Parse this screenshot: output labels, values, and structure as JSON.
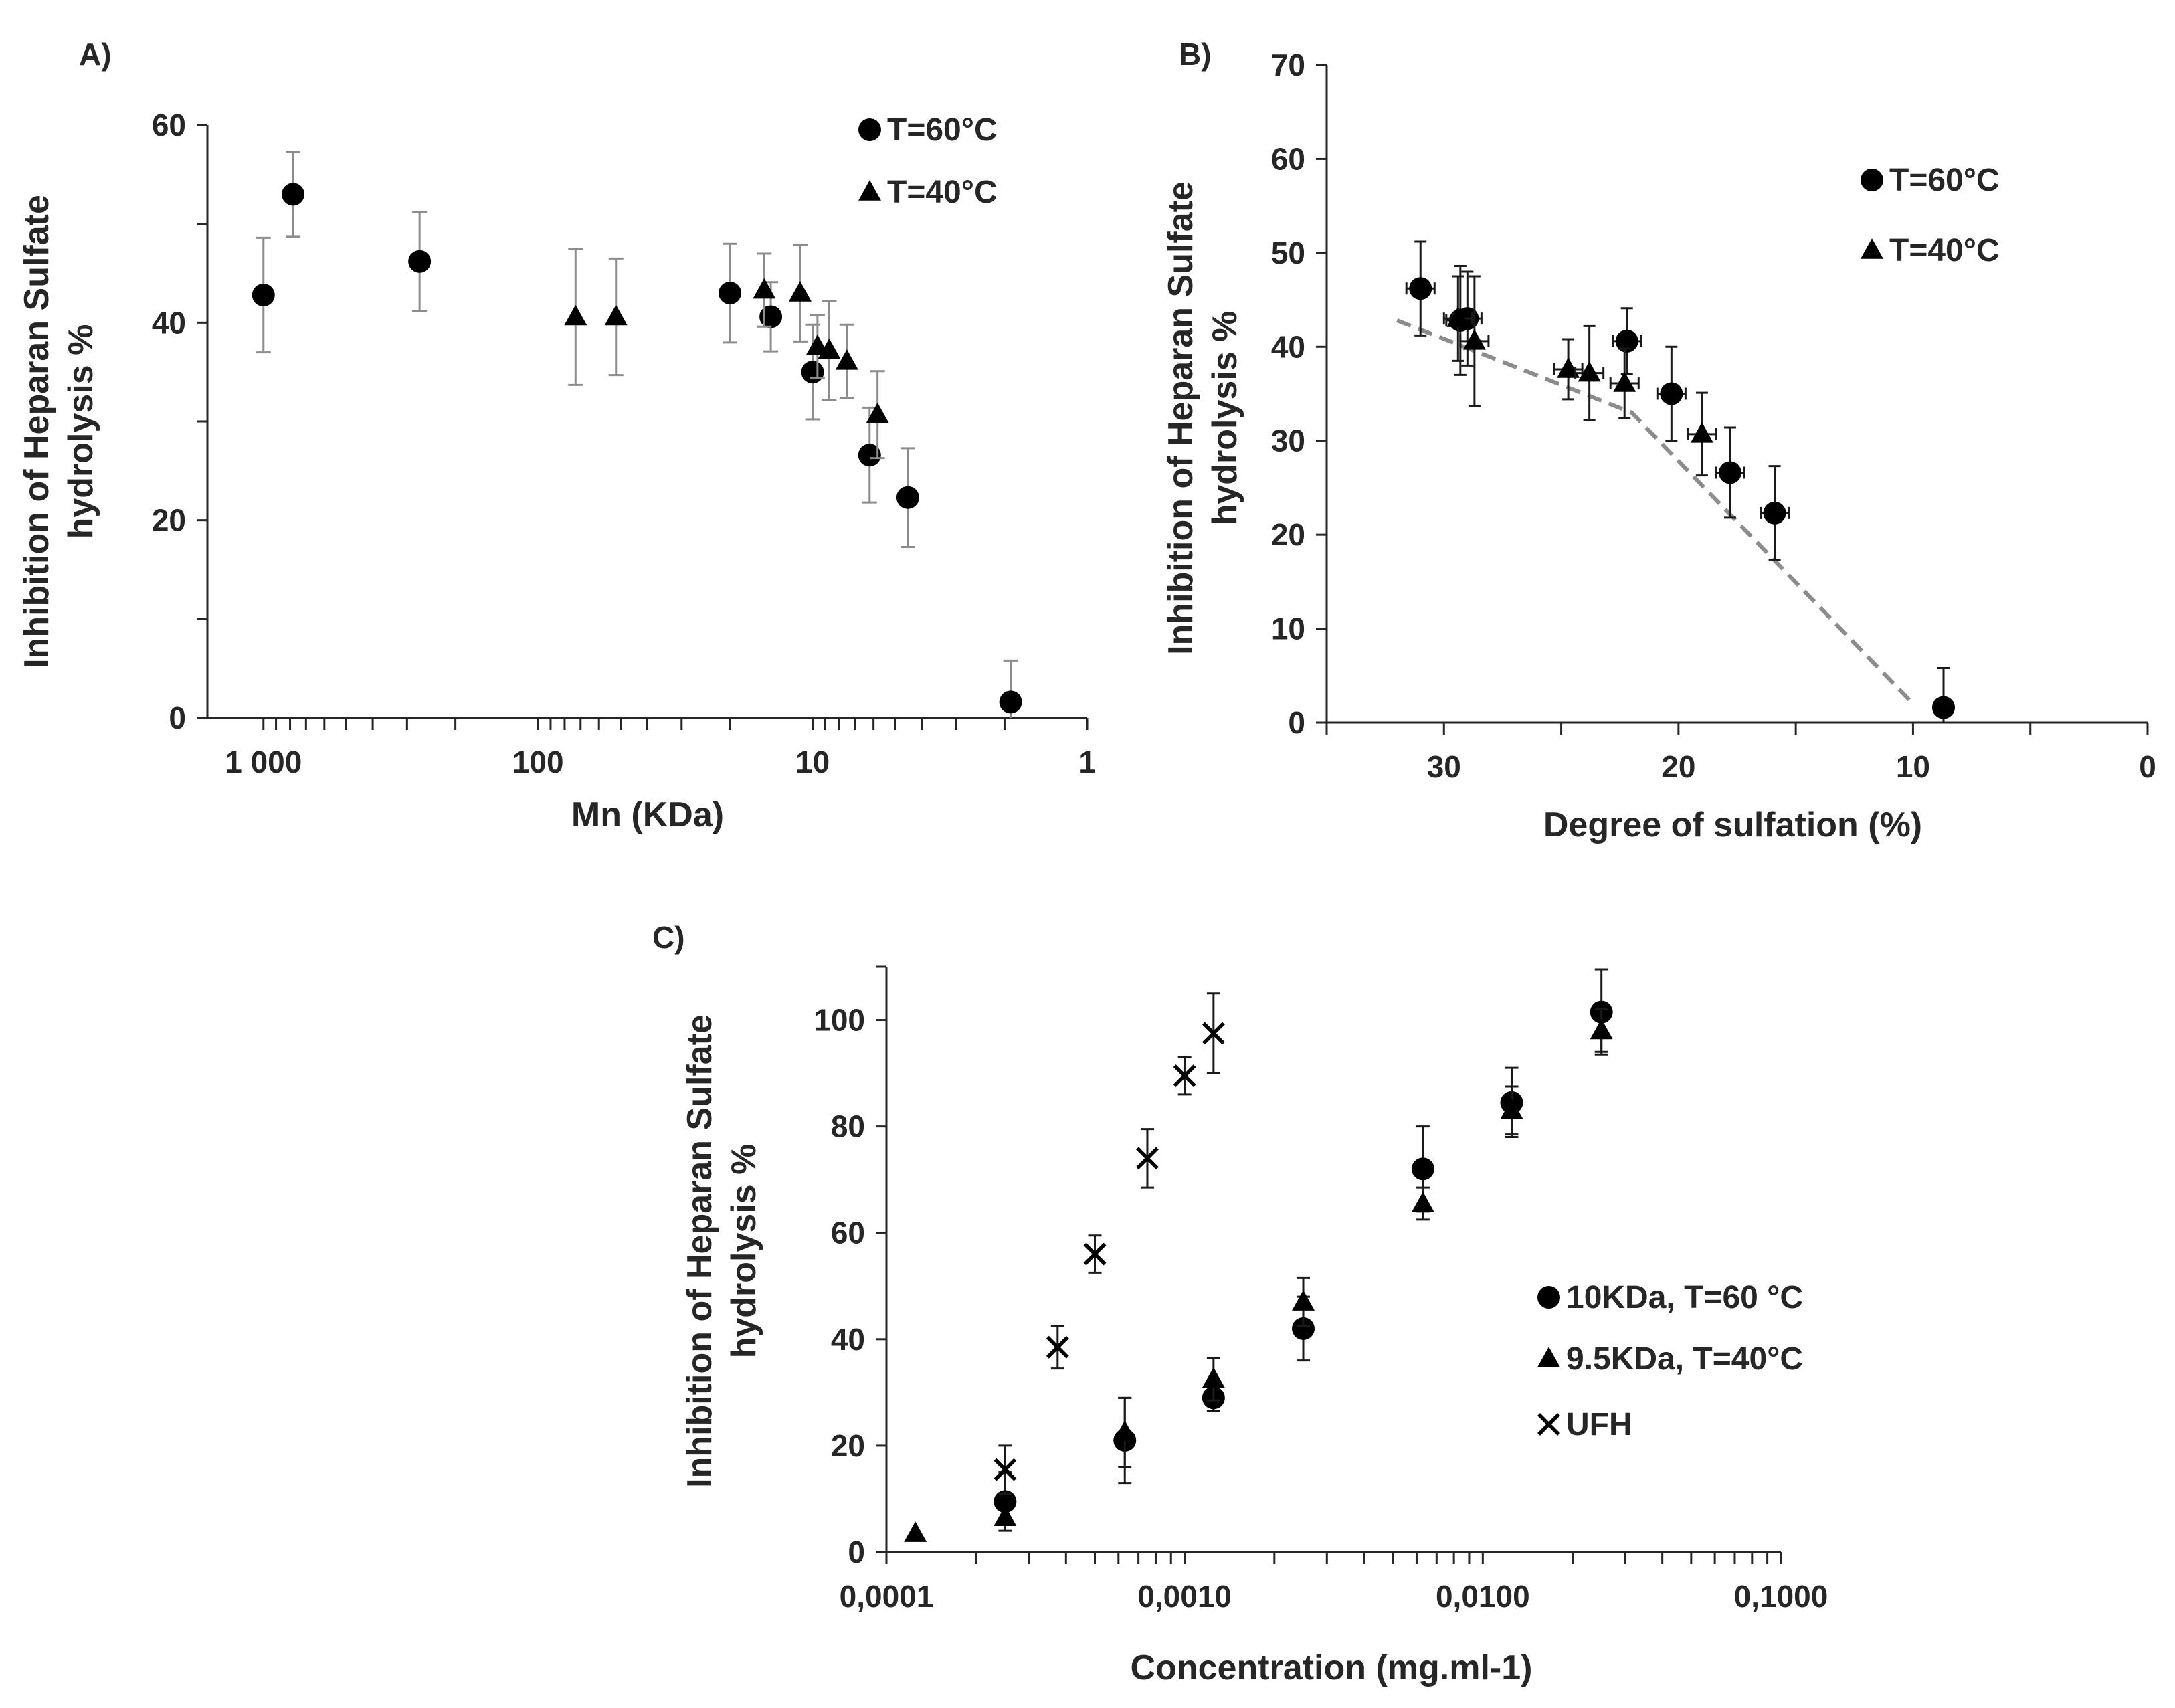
{
  "chart_data": [
    {
      "panel": "A)",
      "type": "scatter",
      "xlabel": "Mn (KDa)",
      "ylabel": [
        "Inhibition of Heparan Sulfate",
        "hydrolysis %"
      ],
      "x_scale": "log",
      "x_reversed": true,
      "xlim": [
        1600,
        1
      ],
      "ylim": [
        0,
        60
      ],
      "x_ticks": [
        {
          "v": 1000,
          "label": "1 000"
        },
        {
          "v": 100,
          "label": "100"
        },
        {
          "v": 10,
          "label": "10"
        },
        {
          "v": 1,
          "label": "1"
        }
      ],
      "y_ticks": [
        {
          "v": 0,
          "label": "0"
        },
        {
          "v": 20,
          "label": "20"
        },
        {
          "v": 40,
          "label": "40"
        },
        {
          "v": 60,
          "label": "60"
        }
      ],
      "legend": [
        "T=60°C",
        "T=40°C"
      ],
      "legend_position": "top-right",
      "series": [
        {
          "name": "T=60°C",
          "marker": "circle",
          "points": [
            {
              "x": 1000,
              "y": 42.8,
              "err": 5.8
            },
            {
              "x": 780,
              "y": 53.0,
              "err": 4.3
            },
            {
              "x": 270,
              "y": 46.2,
              "err": 5.0
            },
            {
              "x": 20,
              "y": 43.0,
              "err": 5.0
            },
            {
              "x": 14.2,
              "y": 40.6,
              "err": 3.5
            },
            {
              "x": 10.0,
              "y": 35.0,
              "err": 4.8
            },
            {
              "x": 6.2,
              "y": 26.6,
              "err": 4.8
            },
            {
              "x": 4.5,
              "y": 22.3,
              "err": 5.0
            },
            {
              "x": 1.9,
              "y": 1.6,
              "err": 4.2
            }
          ]
        },
        {
          "name": "T=40°C",
          "marker": "triangle",
          "points": [
            {
              "x": 73,
              "y": 40.6,
              "err": 6.9
            },
            {
              "x": 52,
              "y": 40.6,
              "err": 5.9
            },
            {
              "x": 15.0,
              "y": 43.3,
              "err": 3.7
            },
            {
              "x": 11.1,
              "y": 43.0,
              "err": 4.9
            },
            {
              "x": 9.6,
              "y": 37.6,
              "err": 3.2
            },
            {
              "x": 8.7,
              "y": 37.2,
              "err": 5.0
            },
            {
              "x": 7.5,
              "y": 36.1,
              "err": 3.7
            },
            {
              "x": 5.8,
              "y": 30.7,
              "err": 4.4
            }
          ]
        }
      ]
    },
    {
      "panel": "B)",
      "type": "scatter",
      "xlabel": "Degree of sulfation (%)",
      "ylabel": [
        "Inhibition of Heparan Sulfate",
        "hydrolysis %"
      ],
      "x_reversed": true,
      "xlim": [
        35,
        0
      ],
      "ylim": [
        0,
        70
      ],
      "x_ticks": [
        {
          "v": 30,
          "label": "30"
        },
        {
          "v": 20,
          "label": "20"
        },
        {
          "v": 10,
          "label": "10"
        },
        {
          "v": 0,
          "label": "0"
        }
      ],
      "y_ticks": [
        {
          "v": 0,
          "label": "0"
        },
        {
          "v": 10,
          "label": "10"
        },
        {
          "v": 20,
          "label": "20"
        },
        {
          "v": 30,
          "label": "30"
        },
        {
          "v": 40,
          "label": "40"
        },
        {
          "v": 50,
          "label": "50"
        },
        {
          "v": 60,
          "label": "60"
        },
        {
          "v": 70,
          "label": "70"
        }
      ],
      "legend": [
        "T=60°C",
        "T=40°C"
      ],
      "legend_position": "top-right",
      "trend_line": [
        {
          "x": 32,
          "y": 42.8
        },
        {
          "x": 22,
          "y": 33
        },
        {
          "x": 10,
          "y": 2
        }
      ],
      "series": [
        {
          "name": "T=60°C",
          "marker": "circle",
          "points": [
            {
              "x": 31.0,
              "y": 46.2,
              "err": 5.0,
              "xerr": 0.6
            },
            {
              "x": 29.3,
              "y": 42.8,
              "err": 5.8,
              "xerr": 0.6
            },
            {
              "x": 29.0,
              "y": 43.0,
              "err": 5.0,
              "xerr": 0.6
            },
            {
              "x": 22.2,
              "y": 40.6,
              "err": 3.5,
              "xerr": 0.6
            },
            {
              "x": 20.3,
              "y": 35.0,
              "err": 5.0,
              "xerr": 0.6
            },
            {
              "x": 17.8,
              "y": 26.6,
              "err": 4.8,
              "xerr": 0.6
            },
            {
              "x": 15.9,
              "y": 22.3,
              "err": 5.0,
              "xerr": 0.6
            },
            {
              "x": 8.7,
              "y": 1.6,
              "err": 4.2,
              "xerr": 0.4
            }
          ]
        },
        {
          "name": "T=40°C",
          "marker": "triangle",
          "points": [
            {
              "x": 29.4,
              "y": 43.0,
              "err": 4.5,
              "xerr": 0.6
            },
            {
              "x": 28.7,
              "y": 40.6,
              "err": 6.9,
              "xerr": 0.6
            },
            {
              "x": 24.7,
              "y": 37.6,
              "err": 3.2,
              "xerr": 0.6
            },
            {
              "x": 23.8,
              "y": 37.2,
              "err": 5.0,
              "xerr": 0.6
            },
            {
              "x": 22.3,
              "y": 36.1,
              "err": 3.7,
              "xerr": 0.6
            },
            {
              "x": 19.0,
              "y": 30.7,
              "err": 4.4,
              "xerr": 0.6
            }
          ]
        }
      ]
    },
    {
      "panel": "C)",
      "type": "scatter",
      "xlabel": "Concentration (mg.ml-1)",
      "ylabel": [
        "Inhibition of Heparan Sulfate",
        "hydrolysis %"
      ],
      "x_scale": "log",
      "xlim": [
        0.0001,
        0.1
      ],
      "ylim": [
        0,
        110
      ],
      "x_ticks": [
        {
          "v": 0.0001,
          "label": "0,0001"
        },
        {
          "v": 0.001,
          "label": "0,0010"
        },
        {
          "v": 0.01,
          "label": "0,0100"
        },
        {
          "v": 0.1,
          "label": "0,1000"
        }
      ],
      "y_ticks": [
        {
          "v": 0,
          "label": "0"
        },
        {
          "v": 20,
          "label": "20"
        },
        {
          "v": 40,
          "label": "40"
        },
        {
          "v": 60,
          "label": "60"
        },
        {
          "v": 80,
          "label": "80"
        },
        {
          "v": 100,
          "label": "100"
        }
      ],
      "legend": [
        "10KDa, T=60 °C",
        "9.5KDa, T=40°C",
        "UFH"
      ],
      "legend_position": "bottom-right",
      "series": [
        {
          "name": "10KDa, T=60 °C",
          "marker": "circle",
          "points": [
            {
              "x": 0.00025,
              "y": 9.5,
              "err": 5.5
            },
            {
              "x": 0.00063,
              "y": 21.0,
              "err": 8.0
            },
            {
              "x": 0.00125,
              "y": 29.0,
              "err": 2.5
            },
            {
              "x": 0.0025,
              "y": 42.0,
              "err": 6.0
            },
            {
              "x": 0.0063,
              "y": 72.0,
              "err": 8.0
            },
            {
              "x": 0.0125,
              "y": 84.5,
              "err": 6.5
            },
            {
              "x": 0.025,
              "y": 101.5,
              "err": 8.0
            }
          ]
        },
        {
          "name": "9.5KDa, T=40°C",
          "marker": "triangle",
          "points": [
            {
              "x": 0.000125,
              "y": 3.5,
              "err": 0
            },
            {
              "x": 0.00025,
              "y": 6.5,
              "err": 0
            },
            {
              "x": 0.00063,
              "y": 22.5,
              "err": 6.5
            },
            {
              "x": 0.00125,
              "y": 32.5,
              "err": 4.0
            },
            {
              "x": 0.0025,
              "y": 47.0,
              "err": 4.5
            },
            {
              "x": 0.0063,
              "y": 65.5,
              "err": 3.0
            },
            {
              "x": 0.0125,
              "y": 83.0,
              "err": 4.5
            },
            {
              "x": 0.025,
              "y": 98.0,
              "err": 4.0
            }
          ]
        },
        {
          "name": "UFH",
          "marker": "x",
          "points": [
            {
              "x": 0.00025,
              "y": 15.5,
              "err": 4.5
            },
            {
              "x": 0.000375,
              "y": 38.5,
              "err": 4.0
            },
            {
              "x": 0.0005,
              "y": 56.0,
              "err": 3.5
            },
            {
              "x": 0.00075,
              "y": 74.0,
              "err": 5.5
            },
            {
              "x": 0.001,
              "y": 89.5,
              "err": 3.5
            },
            {
              "x": 0.00125,
              "y": 97.5,
              "err": 7.5
            }
          ]
        }
      ]
    }
  ]
}
